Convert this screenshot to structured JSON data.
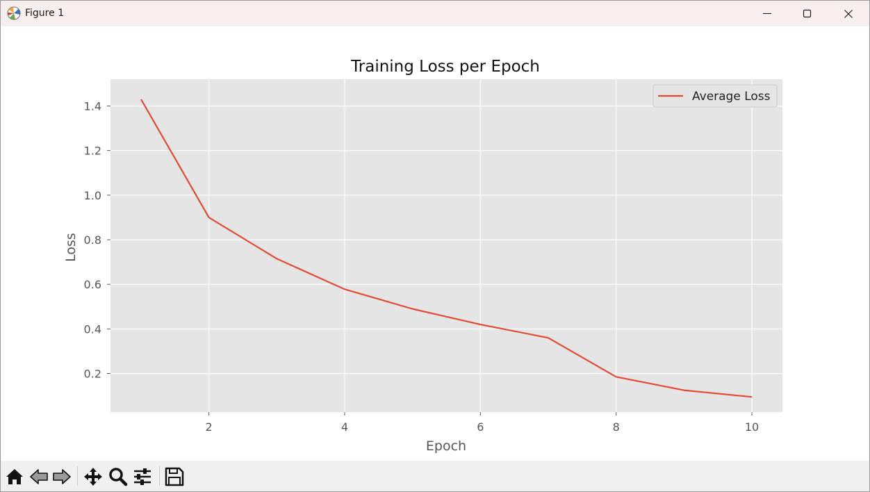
{
  "window": {
    "title": "Figure 1",
    "controls": [
      "minimize-icon",
      "maximize-icon",
      "close-icon"
    ]
  },
  "toolbar": {
    "buttons": [
      {
        "name": "home",
        "icon": "home-icon"
      },
      {
        "name": "back",
        "icon": "back-arrow-icon"
      },
      {
        "name": "forward",
        "icon": "forward-arrow-icon"
      },
      {
        "name": "pan",
        "icon": "move-icon"
      },
      {
        "name": "zoom",
        "icon": "magnifier-icon"
      },
      {
        "name": "configure-subplots",
        "icon": "sliders-icon"
      },
      {
        "name": "save",
        "icon": "floppy-disk-icon"
      }
    ]
  },
  "chart_data": {
    "type": "line",
    "title": "Training Loss per Epoch",
    "xlabel": "Epoch",
    "ylabel": "Loss",
    "x": [
      1,
      2,
      3,
      4,
      5,
      6,
      7,
      8,
      9,
      10
    ],
    "series": [
      {
        "name": "Average Loss",
        "color": "#e24a33",
        "values": [
          1.43,
          0.9,
          0.715,
          0.578,
          0.49,
          0.42,
          0.36,
          0.185,
          0.125,
          0.095
        ]
      }
    ],
    "xlim": [
      0.55,
      10.45
    ],
    "ylim": [
      0.027,
      1.52
    ],
    "xticks": [
      2,
      4,
      6,
      8,
      10
    ],
    "xtick_labels": [
      "2",
      "4",
      "6",
      "8",
      "10"
    ],
    "yticks": [
      0.2,
      0.4,
      0.6,
      0.8,
      1.0,
      1.2,
      1.4
    ],
    "ytick_labels": [
      "0.2",
      "0.4",
      "0.6",
      "0.8",
      "1.0",
      "1.2",
      "1.4"
    ],
    "grid": true,
    "legend_position": "top-right",
    "style": "ggplot",
    "colors": {
      "axes_bg": "#e5e5e5",
      "grid": "#ffffff",
      "tick_text": "#555555",
      "label_text": "#555555"
    }
  }
}
